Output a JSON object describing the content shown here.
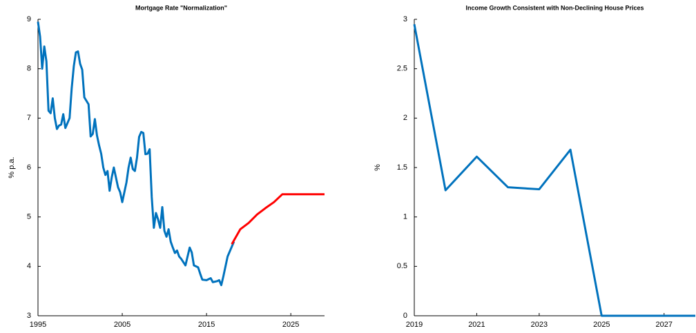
{
  "chart_data": [
    {
      "type": "line",
      "title": "Mortgage Rate \"Normalization\"",
      "y_label": "% p.a.",
      "xlim": [
        1995,
        2029
      ],
      "xticks": [
        1995,
        2005,
        2015,
        2025
      ],
      "ylim": [
        3,
        9
      ],
      "yticks": [
        3,
        4,
        5,
        6,
        7,
        8,
        9
      ],
      "series": [
        {
          "color": "#0072bd",
          "x": [
            1995,
            1995.25,
            1995.5,
            1995.75,
            1996,
            1996.25,
            1996.5,
            1996.75,
            1997,
            1997.25,
            1997.5,
            1997.75,
            1998,
            1998.25,
            1998.5,
            1998.75,
            1999,
            1999.25,
            1999.5,
            1999.75,
            2000,
            2000.25,
            2000.5,
            2000.75,
            2001,
            2001.25,
            2001.5,
            2001.75,
            2002,
            2002.25,
            2002.5,
            2002.75,
            2003,
            2003.25,
            2003.5,
            2003.75,
            2004,
            2004.25,
            2004.5,
            2004.75,
            2005,
            2005.25,
            2005.5,
            2005.75,
            2006,
            2006.25,
            2006.5,
            2006.75,
            2007,
            2007.25,
            2007.5,
            2007.75,
            2008,
            2008.25,
            2008.5,
            2008.75,
            2009,
            2009.25,
            2009.5,
            2009.75,
            2010,
            2010.25,
            2010.5,
            2010.75,
            2011,
            2011.25,
            2011.5,
            2011.75,
            2012,
            2012.5,
            2013,
            2013.25,
            2013.5,
            2014,
            2014.25,
            2014.5,
            2015,
            2015.5,
            2015.75,
            2016.25,
            2016.5,
            2016.75,
            2017,
            2017.5,
            2018,
            2018.25
          ],
          "values": [
            8.95,
            8.65,
            8.0,
            8.45,
            8.15,
            7.15,
            7.1,
            7.4,
            7.0,
            6.78,
            6.85,
            6.87,
            7.08,
            6.8,
            6.9,
            7.0,
            7.6,
            8.05,
            8.33,
            8.35,
            8.1,
            7.98,
            7.42,
            7.35,
            7.28,
            6.63,
            6.68,
            6.98,
            6.65,
            6.45,
            6.28,
            6.0,
            5.85,
            5.93,
            5.53,
            5.8,
            6.0,
            5.8,
            5.6,
            5.5,
            5.3,
            5.5,
            5.7,
            6.0,
            6.2,
            5.97,
            5.93,
            6.2,
            6.62,
            6.72,
            6.7,
            6.27,
            6.28,
            6.37,
            5.4,
            4.78,
            5.08,
            4.95,
            4.78,
            5.2,
            4.72,
            4.6,
            4.75,
            4.5,
            4.38,
            4.27,
            4.32,
            4.2,
            4.15,
            4.02,
            4.38,
            4.28,
            4.02,
            3.98,
            3.85,
            3.73,
            3.72,
            3.76,
            3.68,
            3.7,
            3.72,
            3.62,
            3.8,
            4.2,
            4.4,
            4.5
          ]
        },
        {
          "color": "#ff0000",
          "x": [
            2018,
            2019,
            2020,
            2021,
            2022,
            2023,
            2024,
            2025,
            2026,
            2027,
            2028,
            2029
          ],
          "values": [
            4.45,
            4.75,
            4.88,
            5.05,
            5.18,
            5.3,
            5.46,
            5.46,
            5.46,
            5.46,
            5.46,
            5.46
          ]
        }
      ]
    },
    {
      "type": "line",
      "title": "Income Growth Consistent with Non-Declining House Prices",
      "y_label": "%",
      "xlim": [
        2019,
        2028
      ],
      "xticks": [
        2019,
        2021,
        2023,
        2025,
        2027
      ],
      "ylim": [
        0,
        3
      ],
      "yticks": [
        0,
        0.5,
        1,
        1.5,
        2,
        2.5,
        3
      ],
      "series": [
        {
          "color": "#0072bd",
          "x": [
            2019,
            2020,
            2021,
            2022,
            2023,
            2024,
            2025,
            2026,
            2027,
            2028
          ],
          "values": [
            2.95,
            1.27,
            1.61,
            1.3,
            1.28,
            1.68,
            0,
            0,
            0,
            0
          ]
        }
      ]
    }
  ]
}
